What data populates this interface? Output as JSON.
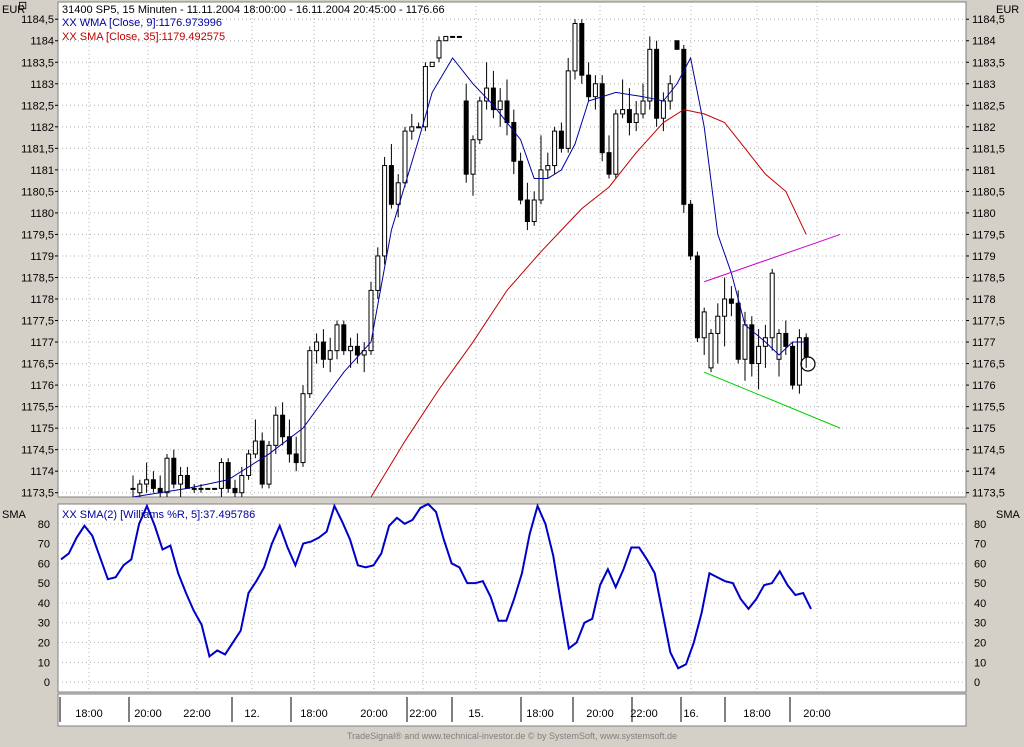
{
  "header": {
    "title": "31400  SP5, 15 Minuten - 11.11.2004 18:00:00 - 16.11.2004 20:45:00 - 1176.66",
    "currency": "EUR",
    "indicator_wma": "XX WMA [Close, 9]:1176.973996",
    "indicator_sma": "XX SMA [Close, 35]:1179.492575"
  },
  "lower_header": {
    "label": "SMA",
    "indicator": "XX SMA(2) [Williams %R, 5]:37.495786"
  },
  "footer": {
    "credits": "TradeSignal® and www.technical-investor.de © by SystemSoft, www.systemsoft.de"
  },
  "colors": {
    "background": "#ffffff",
    "frame": "#d4d0c8",
    "wma": "#0000a0",
    "sma": "#c00000",
    "williams": "#0000c8",
    "trend_upper": "#d000d0",
    "trend_lower": "#00d000"
  },
  "chart_data": [
    {
      "type": "candlestick",
      "title": "31400  SP5, 15 Minuten - 11.11.2004 18:00:00 - 16.11.2004 20:45:00 - 1176.66",
      "ylim": [
        1173.4,
        1184.9
      ],
      "y_ticks": [
        "1173,5",
        "1174",
        "1174,5",
        "1175",
        "1175,5",
        "1176",
        "1176,5",
        "1177",
        "1177,5",
        "1178",
        "1178,5",
        "1179",
        "1179,5",
        "1180",
        "1180,5",
        "1181",
        "1181,5",
        "1182",
        "1182,5",
        "1183",
        "1183,5",
        "1184",
        "1184,5"
      ],
      "x_tick_labels": [
        "18:00",
        "20:00",
        "22:00",
        "12.",
        "18:00",
        "20:00",
        "22:00",
        "15.",
        "18:00",
        "20:00",
        "22:00",
        "16.",
        "18:00",
        "20:00"
      ],
      "candles": [
        [
          1173.6,
          1173.9,
          1173.4,
          1173.6
        ],
        [
          1173.5,
          1173.8,
          1173.4,
          1173.7
        ],
        [
          1173.7,
          1174.2,
          1173.5,
          1173.8
        ],
        [
          1173.8,
          1174.0,
          1173.5,
          1173.6
        ],
        [
          1173.6,
          1173.9,
          1173.4,
          1173.5
        ],
        [
          1173.5,
          1174.4,
          1173.4,
          1174.3
        ],
        [
          1174.3,
          1174.5,
          1173.6,
          1173.7
        ],
        [
          1173.7,
          1174.1,
          1173.4,
          1173.9
        ],
        [
          1173.9,
          1174.1,
          1173.6,
          1173.6
        ],
        [
          1173.6,
          1173.7,
          1173.5,
          1173.6
        ],
        [
          1173.6,
          1173.7,
          1173.5,
          1173.6
        ],
        [
          1173.6,
          1173.6,
          1173.6,
          1173.6
        ],
        [
          1173.6,
          1173.6,
          1173.6,
          1173.6
        ],
        [
          1173.6,
          1174.3,
          1173.4,
          1174.2
        ],
        [
          1174.2,
          1174.3,
          1173.5,
          1173.6
        ],
        [
          1173.6,
          1173.8,
          1173.4,
          1173.5
        ],
        [
          1173.5,
          1174.1,
          1173.4,
          1173.9
        ],
        [
          1173.9,
          1174.5,
          1173.8,
          1174.4
        ],
        [
          1174.4,
          1175.2,
          1174.3,
          1174.7
        ],
        [
          1174.7,
          1174.9,
          1173.6,
          1173.7
        ],
        [
          1173.7,
          1174.7,
          1173.6,
          1174.6
        ],
        [
          1174.6,
          1175.5,
          1174.4,
          1175.3
        ],
        [
          1175.3,
          1175.6,
          1174.6,
          1174.8
        ],
        [
          1174.8,
          1175.2,
          1174.2,
          1174.4
        ],
        [
          1174.4,
          1174.8,
          1174.0,
          1174.2
        ],
        [
          1174.2,
          1176.0,
          1174.1,
          1175.8
        ],
        [
          1175.8,
          1176.9,
          1175.7,
          1176.8
        ],
        [
          1176.8,
          1177.2,
          1176.5,
          1177.0
        ],
        [
          1177.0,
          1177.3,
          1176.4,
          1176.6
        ],
        [
          1176.6,
          1177.1,
          1176.3,
          1176.8
        ],
        [
          1176.8,
          1177.5,
          1176.6,
          1177.4
        ],
        [
          1177.4,
          1177.5,
          1176.7,
          1176.8
        ],
        [
          1176.8,
          1177.1,
          1176.4,
          1176.9
        ],
        [
          1176.9,
          1177.2,
          1176.5,
          1176.7
        ],
        [
          1176.7,
          1177.0,
          1176.3,
          1176.8
        ],
        [
          1176.8,
          1178.4,
          1176.7,
          1178.2
        ],
        [
          1178.2,
          1179.2,
          1178.0,
          1179.0
        ],
        [
          1179.0,
          1181.3,
          1178.8,
          1181.1
        ],
        [
          1181.1,
          1181.6,
          1180.1,
          1180.2
        ],
        [
          1180.2,
          1180.9,
          1179.9,
          1180.7
        ],
        [
          1180.7,
          1182.0,
          1180.6,
          1181.9
        ],
        [
          1181.9,
          1182.3,
          1181.7,
          1182.0
        ],
        [
          1182.0,
          1182.1,
          1182.0,
          1182.0
        ],
        [
          1182.0,
          1183.5,
          1181.9,
          1183.4
        ],
        [
          1183.4,
          1183.5,
          1183.4,
          1183.5
        ],
        [
          1183.6,
          1184.1,
          1183.5,
          1184.0
        ],
        [
          1184.0,
          1184.1,
          1184.0,
          1184.1
        ],
        [
          1184.1,
          1184.1,
          1184.1,
          1184.1
        ],
        [
          1184.1,
          1184.1,
          1184.1,
          1184.1
        ],
        [
          1182.6,
          1183.0,
          1180.7,
          1180.9
        ],
        [
          1180.9,
          1181.8,
          1180.4,
          1181.7
        ],
        [
          1181.7,
          1182.7,
          1181.6,
          1182.6
        ],
        [
          1182.6,
          1183.5,
          1182.4,
          1182.9
        ],
        [
          1182.9,
          1183.3,
          1182.2,
          1182.4
        ],
        [
          1182.4,
          1182.9,
          1182.0,
          1182.6
        ],
        [
          1182.6,
          1183.1,
          1181.8,
          1182.1
        ],
        [
          1182.1,
          1182.4,
          1180.9,
          1181.2
        ],
        [
          1181.2,
          1181.4,
          1180.2,
          1180.3
        ],
        [
          1180.3,
          1180.7,
          1179.6,
          1179.8
        ],
        [
          1179.8,
          1180.5,
          1179.7,
          1180.3
        ],
        [
          1180.3,
          1181.8,
          1180.2,
          1181.0
        ],
        [
          1181.0,
          1181.4,
          1180.8,
          1181.1
        ],
        [
          1181.1,
          1182.0,
          1180.9,
          1181.9
        ],
        [
          1181.9,
          1182.1,
          1181.4,
          1181.5
        ],
        [
          1181.5,
          1183.6,
          1181.4,
          1183.3
        ],
        [
          1183.3,
          1184.5,
          1183.1,
          1184.4
        ],
        [
          1184.4,
          1184.5,
          1183.0,
          1183.2
        ],
        [
          1183.2,
          1183.5,
          1182.6,
          1182.7
        ],
        [
          1182.7,
          1183.2,
          1182.4,
          1183.0
        ],
        [
          1183.0,
          1183.2,
          1181.2,
          1181.4
        ],
        [
          1181.4,
          1181.8,
          1180.8,
          1180.9
        ],
        [
          1180.9,
          1182.4,
          1180.8,
          1182.3
        ],
        [
          1182.3,
          1183.1,
          1182.2,
          1182.4
        ],
        [
          1182.4,
          1182.9,
          1181.8,
          1182.1
        ],
        [
          1182.1,
          1182.6,
          1181.9,
          1182.3
        ],
        [
          1182.3,
          1183.0,
          1182.2,
          1182.6
        ],
        [
          1182.6,
          1184.1,
          1182.4,
          1183.8
        ],
        [
          1183.8,
          1184.0,
          1182.0,
          1182.2
        ],
        [
          1182.2,
          1182.8,
          1181.9,
          1182.6
        ],
        [
          1182.6,
          1183.2,
          1182.4,
          1183.0
        ],
        [
          1184.0,
          1184.0,
          1183.8,
          1183.8
        ],
        [
          1183.8,
          1183.9,
          1180.0,
          1180.2
        ],
        [
          1180.2,
          1180.3,
          1178.9,
          1179.0
        ],
        [
          1179.0,
          1179.1,
          1177.0,
          1177.1
        ],
        [
          1177.1,
          1177.8,
          1176.7,
          1177.7
        ],
        [
          1176.4,
          1177.3,
          1176.3,
          1177.2
        ],
        [
          1177.2,
          1177.9,
          1176.5,
          1177.6
        ],
        [
          1177.6,
          1178.5,
          1176.9,
          1178.0
        ],
        [
          1178.0,
          1178.3,
          1177.6,
          1177.9
        ],
        [
          1177.9,
          1178.2,
          1176.5,
          1176.6
        ],
        [
          1176.6,
          1177.7,
          1176.1,
          1177.4
        ],
        [
          1177.4,
          1177.6,
          1176.2,
          1176.5
        ],
        [
          1176.5,
          1177.3,
          1175.9,
          1176.9
        ],
        [
          1176.9,
          1177.4,
          1176.4,
          1177.1
        ],
        [
          1177.1,
          1178.7,
          1176.8,
          1178.6
        ],
        [
          1176.6,
          1177.3,
          1176.2,
          1177.2
        ],
        [
          1177.2,
          1177.5,
          1176.7,
          1176.9
        ],
        [
          1176.9,
          1177.0,
          1175.9,
          1176.0
        ],
        [
          1176.0,
          1177.3,
          1175.8,
          1177.1
        ],
        [
          1177.1,
          1177.2,
          1176.4,
          1176.66
        ]
      ],
      "series": [
        {
          "name": "XX WMA [Close, 9]",
          "color": "#0000a0",
          "x_index": [
            0,
            8,
            14,
            20,
            25,
            31,
            35,
            38,
            42,
            44,
            47,
            50,
            53,
            57,
            59,
            61,
            63,
            65,
            67,
            71,
            75,
            78,
            80,
            82,
            84,
            86,
            88,
            90,
            93,
            95,
            97,
            99
          ],
          "values": [
            1173.4,
            1173.6,
            1173.8,
            1174.4,
            1175.0,
            1176.3,
            1177.0,
            1179.6,
            1181.7,
            1182.8,
            1183.6,
            1183.0,
            1182.5,
            1181.7,
            1180.8,
            1180.8,
            1181.0,
            1181.6,
            1182.6,
            1182.8,
            1182.7,
            1182.6,
            1183.0,
            1183.6,
            1182.0,
            1179.5,
            1178.6,
            1177.4,
            1177.0,
            1176.7,
            1177.0,
            1177.0
          ]
        },
        {
          "name": "XX SMA [Close, 35]",
          "color": "#c00000",
          "x_index": [
            35,
            40,
            45,
            50,
            55,
            60,
            63,
            66,
            70,
            74,
            78,
            81,
            84,
            87,
            90,
            93,
            96,
            99
          ],
          "values": [
            1173.4,
            1174.7,
            1175.9,
            1177.0,
            1178.2,
            1179.1,
            1179.6,
            1180.1,
            1180.6,
            1181.4,
            1182.1,
            1182.4,
            1182.3,
            1182.1,
            1181.5,
            1180.9,
            1180.5,
            1179.5
          ]
        }
      ],
      "trendlines": [
        {
          "name": "upper",
          "color": "#d000d0",
          "from": [
            84,
            1178.4
          ],
          "to": [
            104,
            1179.5
          ]
        },
        {
          "name": "lower",
          "color": "#00d000",
          "from": [
            84,
            1176.3
          ],
          "to": [
            104,
            1175.0
          ]
        }
      ]
    },
    {
      "type": "line",
      "title": "XX SMA(2) [Williams %R, 5]:37.495786",
      "ylim": [
        -5,
        90
      ],
      "y_ticks": [
        "0",
        "10",
        "20",
        "30",
        "40",
        "50",
        "60",
        "70",
        "80"
      ],
      "series": [
        {
          "name": "XX SMA(2) [Williams %R, 5]",
          "color": "#0000c8",
          "values": [
            62,
            65,
            73,
            79,
            74,
            63,
            52,
            53,
            59,
            62,
            80,
            89,
            79,
            67,
            69,
            55,
            45,
            36,
            29,
            13,
            16,
            14,
            20,
            26,
            45,
            51,
            58,
            70,
            79,
            68,
            59,
            70,
            71,
            73,
            76,
            89,
            81,
            72,
            59,
            58,
            59,
            65,
            79,
            83,
            80,
            82,
            88,
            90,
            86,
            72,
            60,
            58,
            50,
            50,
            51,
            43,
            31,
            31,
            42,
            55,
            75,
            89,
            80,
            64,
            40,
            17,
            20,
            30,
            32,
            49,
            57,
            48,
            57,
            68,
            68,
            62,
            55,
            35,
            15,
            7,
            9,
            20,
            35,
            55,
            53,
            51,
            50,
            42,
            37,
            42,
            49,
            50,
            56,
            49,
            44,
            45,
            37
          ]
        }
      ]
    }
  ]
}
